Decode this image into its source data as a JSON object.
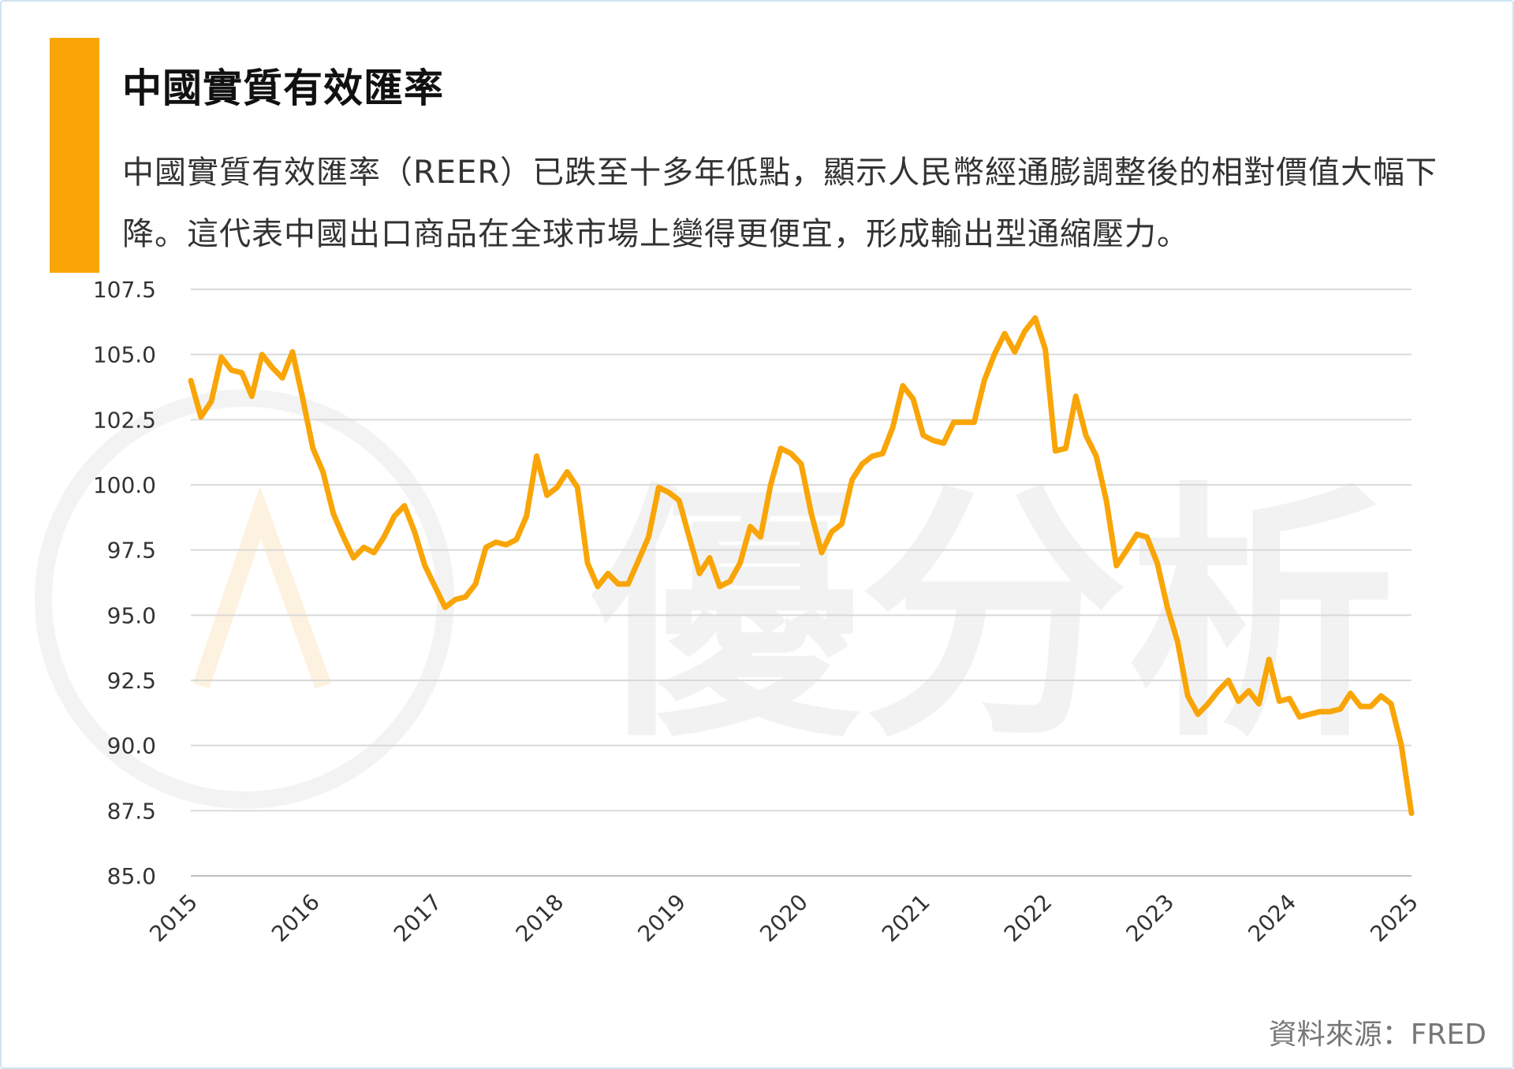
{
  "header": {
    "title": "中國實質有效匯率",
    "description": "中國實質有效匯率（REER）已跌至十多年低點，顯示人民幣經通膨調整後的相對價值大幅下降。這代表中國出口商品在全球市場上變得更便宜，形成輸出型通縮壓力。"
  },
  "footer": {
    "source": "資料來源：FRED"
  },
  "watermark": {
    "text": "優分析"
  },
  "colors": {
    "accent": "#f9a507",
    "line": "#f9a507",
    "grid": "#d9d9d9"
  },
  "chart_data": {
    "type": "line",
    "title": "",
    "xlabel": "",
    "ylabel": "",
    "ylim": [
      85.0,
      107.5
    ],
    "xlim": [
      2015,
      2025
    ],
    "grid": true,
    "legend": "none",
    "yticks": [
      "85.0",
      "87.5",
      "90.0",
      "92.5",
      "95.0",
      "97.5",
      "100.0",
      "102.5",
      "105.0",
      "107.5"
    ],
    "xticks": [
      "2015",
      "2016",
      "2017",
      "2018",
      "2019",
      "2020",
      "2021",
      "2022",
      "2023",
      "2024",
      "2025"
    ],
    "series": [
      {
        "x": [
          2015.0,
          2015.083,
          2015.167,
          2015.25,
          2015.333,
          2015.417,
          2015.5,
          2015.583,
          2015.667,
          2015.75,
          2015.833,
          2015.917,
          2016.0,
          2016.083,
          2016.167,
          2016.25,
          2016.333,
          2016.417,
          2016.5,
          2016.583,
          2016.667,
          2016.75,
          2016.833,
          2016.917,
          2017.0,
          2017.083,
          2017.167,
          2017.25,
          2017.333,
          2017.417,
          2017.5,
          2017.583,
          2017.667,
          2017.75,
          2017.833,
          2017.917,
          2018.0,
          2018.083,
          2018.167,
          2018.25,
          2018.333,
          2018.417,
          2018.5,
          2018.583,
          2018.667,
          2018.75,
          2018.833,
          2018.917,
          2019.0,
          2019.083,
          2019.167,
          2019.25,
          2019.333,
          2019.417,
          2019.5,
          2019.583,
          2019.667,
          2019.75,
          2019.833,
          2019.917,
          2020.0,
          2020.083,
          2020.167,
          2020.25,
          2020.333,
          2020.417,
          2020.5,
          2020.583,
          2020.667,
          2020.75,
          2020.833,
          2020.917,
          2021.0,
          2021.083,
          2021.167,
          2021.25,
          2021.333,
          2021.417,
          2021.5,
          2021.583,
          2021.667,
          2021.75,
          2021.833,
          2021.917,
          2022.0,
          2022.083,
          2022.167,
          2022.25,
          2022.333,
          2022.417,
          2022.5,
          2022.583,
          2022.667,
          2022.75,
          2022.833,
          2022.917,
          2023.0,
          2023.083,
          2023.167,
          2023.25,
          2023.333,
          2023.417,
          2023.5,
          2023.583,
          2023.667,
          2023.75,
          2023.833,
          2023.917,
          2024.0,
          2024.083,
          2024.167,
          2024.25,
          2024.333,
          2024.417,
          2024.5,
          2024.583,
          2024.667,
          2024.75,
          2024.833,
          2024.917,
          2025.0
        ],
        "values": [
          104.0,
          102.6,
          103.2,
          104.9,
          104.4,
          104.3,
          103.4,
          105.0,
          104.5,
          104.1,
          105.1,
          103.3,
          101.4,
          100.5,
          98.9,
          98.0,
          97.2,
          97.6,
          97.4,
          98.0,
          98.8,
          99.2,
          98.2,
          96.9,
          96.1,
          95.3,
          95.6,
          95.7,
          96.2,
          97.6,
          97.8,
          97.7,
          97.9,
          98.8,
          101.1,
          99.6,
          99.9,
          100.5,
          99.9,
          97.0,
          96.1,
          96.6,
          96.2,
          96.2,
          97.1,
          98.0,
          99.9,
          99.7,
          99.4,
          98.0,
          96.6,
          97.2,
          96.1,
          96.3,
          97.0,
          98.4,
          98.0,
          100.0,
          101.4,
          101.2,
          100.8,
          98.9,
          97.4,
          98.2,
          98.5,
          100.2,
          100.8,
          101.1,
          101.2,
          102.2,
          103.8,
          103.3,
          101.9,
          101.7,
          101.6,
          102.4,
          102.4,
          102.4,
          104.0,
          105.0,
          105.8,
          105.1,
          105.9,
          106.4,
          105.2,
          101.3,
          101.4,
          103.4,
          101.9,
          101.1,
          99.4,
          96.9,
          97.5,
          98.1,
          98.0,
          97.0,
          95.3,
          94.0,
          91.9,
          91.2,
          91.6,
          92.1,
          92.5,
          91.7,
          92.1,
          91.6,
          93.3,
          91.7,
          91.8,
          91.1,
          91.2,
          91.3,
          91.3,
          91.4,
          92.0,
          91.5,
          91.5,
          91.9,
          91.6,
          90.0,
          87.4
        ]
      }
    ]
  }
}
